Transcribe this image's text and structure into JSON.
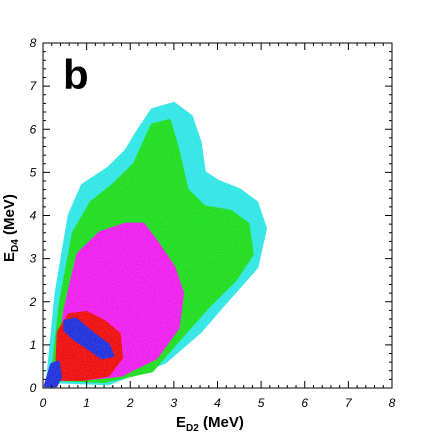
{
  "chart_data": {
    "type": "heatmap",
    "panel_label": "b",
    "xlabel": {
      "main": "E",
      "sub": "D2",
      "unit": " (MeV)"
    },
    "ylabel": {
      "main": "E",
      "sub": "D4",
      "unit": " (MeV)"
    },
    "xlim": [
      0,
      8
    ],
    "ylim": [
      0,
      8
    ],
    "x_ticks": [
      "0",
      "1",
      "2",
      "3",
      "4",
      "5",
      "6",
      "7",
      "8"
    ],
    "y_ticks": [
      "0",
      "1",
      "2",
      "3",
      "4",
      "5",
      "6",
      "7",
      "8"
    ],
    "density_levels": [
      {
        "level": "lowest",
        "color": "#33e6e6"
      },
      {
        "level": "low",
        "color": "#22dd22"
      },
      {
        "level": "medium",
        "color": "#ee22ee"
      },
      {
        "level": "high",
        "color": "#ee1111"
      },
      {
        "level": "highest",
        "color": "#2233dd"
      }
    ],
    "regions": [
      {
        "level": "lowest",
        "points": [
          [
            0.1,
            0.15
          ],
          [
            0.3,
            2.2
          ],
          [
            0.6,
            4.0
          ],
          [
            0.9,
            4.7
          ],
          [
            1.5,
            5.1
          ],
          [
            1.9,
            5.5
          ],
          [
            2.2,
            6.0
          ],
          [
            2.5,
            6.45
          ],
          [
            3.0,
            6.6
          ],
          [
            3.4,
            6.3
          ],
          [
            3.6,
            5.7
          ],
          [
            3.7,
            5.0
          ],
          [
            4.0,
            4.8
          ],
          [
            4.5,
            4.6
          ],
          [
            4.9,
            4.3
          ],
          [
            5.1,
            3.7
          ],
          [
            4.9,
            2.8
          ],
          [
            4.2,
            2.0
          ],
          [
            3.6,
            1.3
          ],
          [
            2.8,
            0.6
          ],
          [
            1.5,
            0.1
          ]
        ]
      },
      {
        "level": "low",
        "points": [
          [
            0.2,
            0.2
          ],
          [
            0.4,
            2.0
          ],
          [
            0.7,
            3.6
          ],
          [
            1.1,
            4.3
          ],
          [
            1.6,
            4.7
          ],
          [
            2.1,
            5.2
          ],
          [
            2.5,
            6.1
          ],
          [
            2.9,
            6.2
          ],
          [
            3.1,
            5.5
          ],
          [
            3.3,
            4.6
          ],
          [
            3.7,
            4.2
          ],
          [
            4.3,
            4.1
          ],
          [
            4.7,
            3.8
          ],
          [
            4.8,
            3.1
          ],
          [
            4.4,
            2.5
          ],
          [
            3.8,
            1.9
          ],
          [
            3.1,
            1.1
          ],
          [
            2.5,
            0.4
          ],
          [
            1.4,
            0.15
          ]
        ]
      },
      {
        "level": "medium",
        "points": [
          [
            0.3,
            0.25
          ],
          [
            0.5,
            1.8
          ],
          [
            0.8,
            3.1
          ],
          [
            1.3,
            3.6
          ],
          [
            1.9,
            3.8
          ],
          [
            2.3,
            3.8
          ],
          [
            2.6,
            3.4
          ],
          [
            3.0,
            2.8
          ],
          [
            3.2,
            2.2
          ],
          [
            3.1,
            1.4
          ],
          [
            2.6,
            0.7
          ],
          [
            1.8,
            0.3
          ],
          [
            0.9,
            0.2
          ]
        ]
      },
      {
        "level": "high",
        "points": [
          [
            0.3,
            0.2
          ],
          [
            0.35,
            1.3
          ],
          [
            0.6,
            1.7
          ],
          [
            1.0,
            1.75
          ],
          [
            1.4,
            1.55
          ],
          [
            1.75,
            1.25
          ],
          [
            1.8,
            0.7
          ],
          [
            1.5,
            0.3
          ],
          [
            0.9,
            0.2
          ]
        ]
      },
      {
        "level": "highest",
        "points": [
          [
            0.5,
            1.55
          ],
          [
            0.75,
            1.6
          ],
          [
            1.1,
            1.3
          ],
          [
            1.5,
            1.0
          ],
          [
            1.6,
            0.75
          ],
          [
            1.35,
            0.7
          ],
          [
            1.0,
            0.95
          ],
          [
            0.7,
            1.15
          ],
          [
            0.5,
            1.35
          ]
        ]
      },
      {
        "level": "highest",
        "points": [
          [
            0.05,
            0.05
          ],
          [
            0.2,
            0.55
          ],
          [
            0.35,
            0.6
          ],
          [
            0.4,
            0.25
          ],
          [
            0.3,
            0.05
          ]
        ]
      }
    ]
  }
}
